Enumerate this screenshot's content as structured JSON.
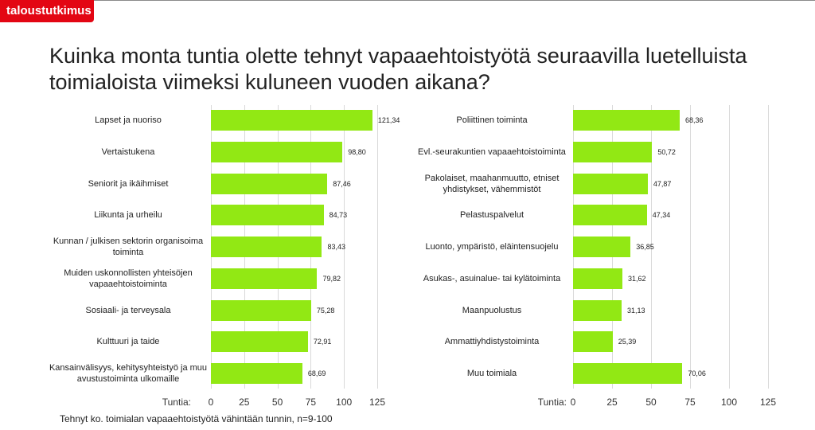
{
  "brand": "taloustutkimus",
  "title": "Kuinka monta tuntia olette tehnyt vapaaehtoistyötä seuraavilla luetelluista toimialoista viimeksi kuluneen vuoden  aikana?",
  "footnote": "Tehnyt ko. toimialan vapaaehtoistyötä vähintään tunnin, n=9-100",
  "chart_data": [
    {
      "type": "bar",
      "xlabel": "Tuntia:",
      "categories": [
        "Lapset ja nuoriso",
        "Vertaistukena",
        "Seniorit ja ikäihmiset",
        "Liikunta ja urheilu",
        "Kunnan / julkisen sektorin organisoima toiminta",
        "Muiden uskonnollisten yhteisöjen vapaaehtoistoiminta",
        "Sosiaali- ja terveysala",
        "Kulttuuri ja taide",
        "Kansainvälisyys, kehitysyhteistyö ja muu avustustoiminta ulkomaille"
      ],
      "values": [
        121.34,
        98.8,
        87.46,
        84.73,
        83.43,
        79.82,
        75.28,
        72.91,
        68.69
      ],
      "value_labels": [
        "121,34",
        "98,80",
        "87,46",
        "84,73",
        "83,43",
        "79,82",
        "75,28",
        "72,91",
        "68,69"
      ],
      "color": "#92e814",
      "xlim": [
        0,
        125
      ],
      "xticks": [
        0,
        25,
        50,
        75,
        100,
        125
      ],
      "grid": true
    },
    {
      "type": "bar",
      "xlabel": "Tuntia:",
      "categories": [
        "Poliittinen toiminta",
        "Evl.-seurakuntien vapaaehtoistoiminta",
        "Pakolaiset, maahanmuutto, etniset yhdistykset, vähemmistöt",
        "Pelastuspalvelut",
        "Luonto, ympäristö, eläintensuojelu",
        "Asukas-, asuinalue- tai kylätoiminta",
        "Maanpuolustus",
        "Ammattiyhdistystoiminta",
        "Muu toimiala"
      ],
      "values": [
        68.36,
        50.72,
        47.87,
        47.34,
        36.85,
        31.62,
        31.13,
        25.39,
        70.06
      ],
      "value_labels": [
        "68,36",
        "50,72",
        "47,87",
        "47,34",
        "36,85",
        "31,62",
        "31,13",
        "25,39",
        "70,06"
      ],
      "color": "#92e814",
      "xlim": [
        0,
        125
      ],
      "xticks": [
        0,
        25,
        50,
        75,
        100,
        125
      ],
      "grid": true
    }
  ]
}
